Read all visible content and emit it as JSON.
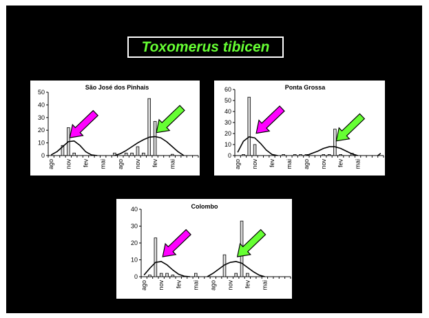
{
  "slide_title": "Toxomerus tibicen",
  "colors": {
    "background": "#000000",
    "title_text": "#66ff33",
    "arrow_magenta": "#ff00ff",
    "arrow_green": "#66ff33",
    "bar_fill": "#d9d9d9"
  },
  "chart_data": [
    {
      "type": "bar",
      "title": "São José dos Pinhais",
      "ylim": [
        0,
        50
      ],
      "yticks": [
        "0",
        "10",
        "20",
        "30",
        "40",
        "50"
      ],
      "xtick_labels": [
        "ago",
        "nov",
        "fev",
        "mai",
        "ago",
        "nov",
        "fev",
        "mai"
      ],
      "n_slots": 26,
      "xtick_slots": [
        0,
        3,
        6,
        9,
        12,
        15,
        18,
        21
      ],
      "values": [
        0,
        0,
        8,
        22,
        2,
        0,
        0,
        0,
        0,
        0,
        0,
        2,
        0,
        2,
        2,
        7,
        2,
        45,
        27,
        0,
        0,
        1,
        0,
        0,
        0,
        0
      ],
      "curves": [
        {
          "x": [
            0,
            1,
            2,
            3,
            4,
            5,
            6,
            7,
            8
          ],
          "y": [
            0.5,
            3,
            7,
            11,
            11.5,
            8,
            3,
            0.5,
            0
          ]
        },
        {
          "x": [
            11,
            12,
            13,
            14,
            15,
            16,
            17,
            18,
            19,
            20,
            21,
            22,
            23
          ],
          "y": [
            0,
            1.5,
            4,
            7,
            10,
            12.5,
            14.5,
            15,
            14,
            11,
            7,
            3,
            0
          ]
        }
      ],
      "arrows": [
        {
          "color": "magenta",
          "tip_slot": 3,
          "tip_value": 13
        },
        {
          "color": "green",
          "tip_slot": 18,
          "tip_value": 17
        }
      ]
    },
    {
      "type": "bar",
      "title": "Ponta Grossa",
      "ylim": [
        0,
        60
      ],
      "yticks": [
        "0",
        "10",
        "20",
        "30",
        "40",
        "50",
        "60"
      ],
      "xtick_labels": [
        "ago",
        "nov",
        "fev",
        "mai",
        "ago",
        "nov",
        "fev",
        "mai"
      ],
      "n_slots": 26,
      "xtick_slots": [
        0,
        3,
        6,
        9,
        12,
        15,
        18,
        21
      ],
      "values": [
        0,
        1,
        53,
        10,
        0,
        0,
        0,
        0,
        1,
        0,
        1,
        1,
        1,
        0,
        0,
        1,
        1,
        24,
        1,
        0,
        2,
        0,
        0,
        0,
        0,
        0
      ],
      "curves": [
        {
          "x": [
            0,
            1,
            2,
            3,
            4,
            5,
            6,
            7
          ],
          "y": [
            3,
            13,
            17,
            16,
            11,
            5,
            1,
            0
          ]
        },
        {
          "x": [
            12,
            13,
            14,
            15,
            16,
            17,
            18,
            19,
            20,
            21
          ],
          "y": [
            0,
            2,
            4,
            6.5,
            8,
            8,
            6.5,
            4,
            1.5,
            0
          ]
        },
        {
          "x": [
            24.5,
            25
          ],
          "y": [
            0,
            2
          ]
        }
      ],
      "arrows": [
        {
          "color": "magenta",
          "tip_slot": 3,
          "tip_value": 19
        },
        {
          "color": "green",
          "tip_slot": 17,
          "tip_value": 12
        }
      ]
    },
    {
      "type": "bar",
      "title": "Colombo",
      "ylim": [
        0,
        40
      ],
      "yticks": [
        "0",
        "10",
        "20",
        "30",
        "40"
      ],
      "xtick_labels": [
        "ago",
        "nov",
        "fev",
        "mai",
        "ago",
        "nov",
        "fev",
        "mai"
      ],
      "n_slots": 26,
      "xtick_slots": [
        0,
        3,
        6,
        9,
        12,
        15,
        18,
        21
      ],
      "values": [
        0,
        1,
        23,
        2,
        2,
        1,
        0,
        0,
        0,
        2,
        0,
        0,
        0,
        0,
        13,
        0,
        2,
        33,
        2,
        0,
        0,
        0,
        0,
        0,
        0,
        0
      ],
      "curves": [
        {
          "x": [
            0,
            1,
            2,
            3,
            4,
            5,
            6,
            7,
            8
          ],
          "y": [
            1,
            5,
            8.5,
            9,
            7,
            4,
            1.5,
            0.3,
            0
          ]
        },
        {
          "x": [
            11,
            12,
            13,
            14,
            15,
            16,
            17,
            18,
            19,
            20,
            21
          ],
          "y": [
            0,
            2,
            4.5,
            7,
            8.5,
            9,
            8,
            5.5,
            3,
            1,
            0
          ]
        }
      ],
      "arrows": [
        {
          "color": "magenta",
          "tip_slot": 3,
          "tip_value": 11
        },
        {
          "color": "green",
          "tip_slot": 16,
          "tip_value": 11
        }
      ]
    }
  ]
}
